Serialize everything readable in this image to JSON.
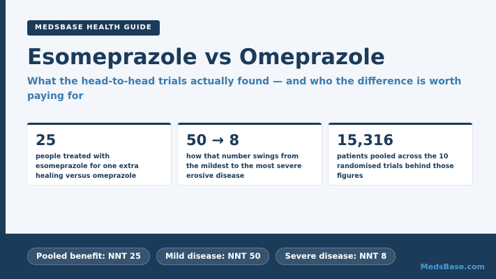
{
  "badge": "MEDSBASE HEALTH GUIDE",
  "title": "Esomeprazole vs Omeprazole",
  "subtitle": "What the head-to-head trials actually found — and who the difference is worth paying for",
  "stats": [
    {
      "value": "25",
      "description": "people treated with esomeprazole for one extra healing versus omeprazole"
    },
    {
      "value": "50 → 8",
      "description": "how that number swings from the mildest to the most severe erosive disease"
    },
    {
      "value": "15,316",
      "description": "patients pooled across the 10 randomised trials behind those figures"
    }
  ],
  "pills": [
    "Pooled benefit: NNT 25",
    "Mild disease: NNT 50",
    "Severe disease: NNT 8"
  ],
  "brand": "MedsBase.com",
  "colors": {
    "navy": "#1b3b5a",
    "accent_blue": "#3a7cb0",
    "brand_blue": "#4a9bd6",
    "background": "#f3f6fa"
  }
}
